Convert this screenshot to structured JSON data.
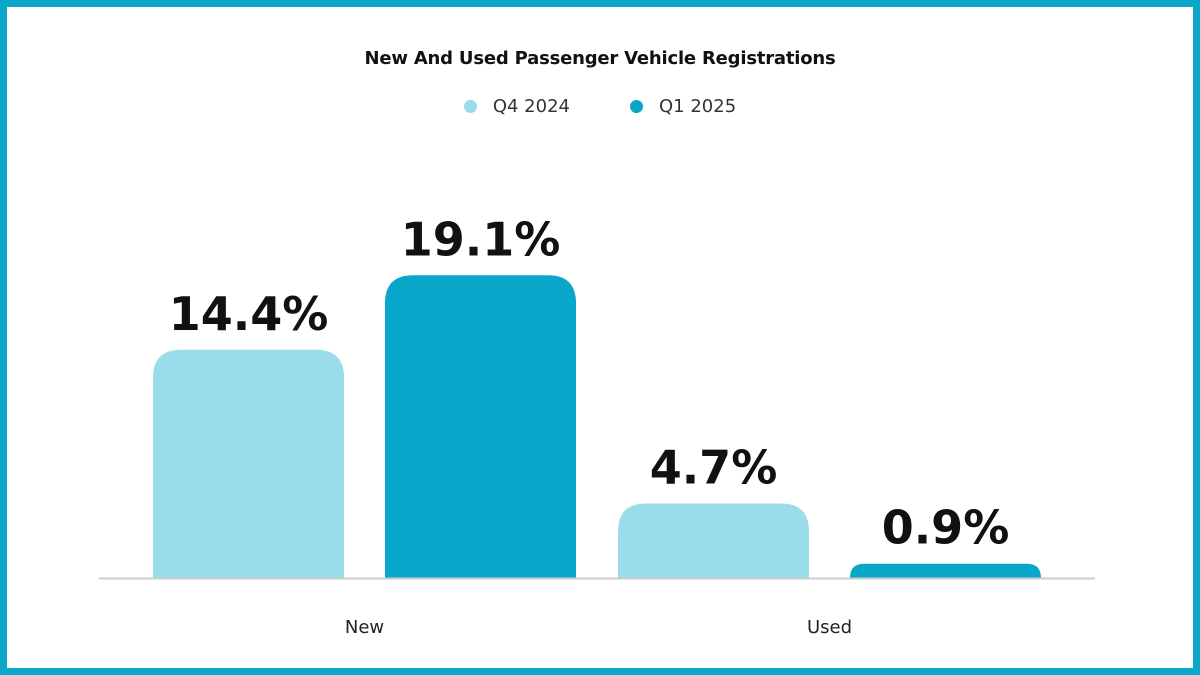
{
  "chart_data": {
    "type": "bar",
    "title": "New And Used Passenger Vehicle Registrations",
    "categories": [
      "New",
      "Used"
    ],
    "series": [
      {
        "name": "Q4 2024",
        "color": "#9bdcea",
        "values": [
          14.4,
          4.7
        ],
        "labels": [
          "14.4%",
          "4.7%"
        ]
      },
      {
        "name": "Q1 2025",
        "color": "#08a6c8",
        "values": [
          19.1,
          0.9
        ],
        "labels": [
          "19.1%",
          "0.9%"
        ]
      }
    ],
    "ylim": [
      0,
      25
    ],
    "grid": false,
    "legend_position": "top-center",
    "frame_color": "#0aa7c9",
    "axis_color": "#cccccc"
  }
}
